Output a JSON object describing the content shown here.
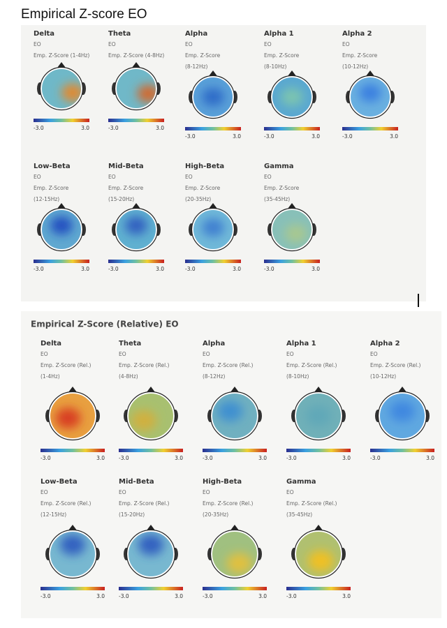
{
  "sections": [
    {
      "title": "Empirical Z-score EO",
      "maps": [
        {
          "name": "Delta",
          "condition": "EO",
          "metric": "Emp. Z-Score (1-4Hz)",
          "scale_min": "-3.0",
          "scale_max": "3.0"
        },
        {
          "name": "Theta",
          "condition": "EO",
          "metric": "Emp. Z-Score (4-8Hz)",
          "scale_min": "-3.0",
          "scale_max": "3.0"
        },
        {
          "name": "Alpha",
          "condition": "EO",
          "metric": "Emp. Z-Score",
          "band": "(8-12Hz)",
          "scale_min": "-3.0",
          "scale_max": "3.0"
        },
        {
          "name": "Alpha 1",
          "condition": "EO",
          "metric": "Emp. Z-Score",
          "band": "(8-10Hz)",
          "scale_min": "-3.0",
          "scale_max": "3.0"
        },
        {
          "name": "Alpha 2",
          "condition": "EO",
          "metric": "Emp. Z-Score",
          "band": "(10-12Hz)",
          "scale_min": "-3.0",
          "scale_max": "3.0"
        },
        {
          "name": "Low-Beta",
          "condition": "EO",
          "metric": "Emp. Z-Score",
          "band": "(12-15Hz)",
          "scale_min": "-3.0",
          "scale_max": "3.0"
        },
        {
          "name": "Mid-Beta",
          "condition": "EO",
          "metric": "Emp. Z-Score",
          "band": "(15-20Hz)",
          "scale_min": "-3.0",
          "scale_max": "3.0"
        },
        {
          "name": "High-Beta",
          "condition": "EO",
          "metric": "Emp. Z-Score",
          "band": "(20-35Hz)",
          "scale_min": "-3.0",
          "scale_max": "3.0"
        },
        {
          "name": "Gamma",
          "condition": "EO",
          "metric": "Emp. Z-Score",
          "band": "(35-45Hz)",
          "scale_min": "-3.0",
          "scale_max": "3.0"
        }
      ]
    },
    {
      "title": "Empirical Z-Score (Relative) EO",
      "maps": [
        {
          "name": "Delta",
          "condition": "EO",
          "metric": "Emp. Z-Score (Rel.)",
          "band": "(1-4Hz)",
          "scale_min": "-3.0",
          "scale_max": "3.0"
        },
        {
          "name": "Theta",
          "condition": "EO",
          "metric": "Emp. Z-Score (Rel.)",
          "band": "(4-8Hz)",
          "scale_min": "-3.0",
          "scale_max": "3.0"
        },
        {
          "name": "Alpha",
          "condition": "EO",
          "metric": "Emp. Z-Score (Rel.)",
          "band": "(8-12Hz)",
          "scale_min": "-3.0",
          "scale_max": "3.0"
        },
        {
          "name": "Alpha 1",
          "condition": "EO",
          "metric": "Emp. Z-Score (Rel.)",
          "band": "(8-10Hz)",
          "scale_min": "-3.0",
          "scale_max": "3.0"
        },
        {
          "name": "Alpha 2",
          "condition": "EO",
          "metric": "Emp. Z-Score (Rel.)",
          "band": "(10-12Hz)",
          "scale_min": "-3.0",
          "scale_max": "3.0"
        },
        {
          "name": "Low-Beta",
          "condition": "EO",
          "metric": "Emp. Z-Score (Rel.)",
          "band": "(12-15Hz)",
          "scale_min": "-3.0",
          "scale_max": "3.0"
        },
        {
          "name": "Mid-Beta",
          "condition": "EO",
          "metric": "Emp. Z-Score (Rel.)",
          "band": "(15-20Hz)",
          "scale_min": "-3.0",
          "scale_max": "3.0"
        },
        {
          "name": "High-Beta",
          "condition": "EO",
          "metric": "Emp. Z-Score (Rel.)",
          "band": "(20-35Hz)",
          "scale_min": "-3.0",
          "scale_max": "3.0"
        },
        {
          "name": "Gamma",
          "condition": "EO",
          "metric": "Emp. Z-Score (Rel.)",
          "band": "(35-45Hz)",
          "scale_min": "-3.0",
          "scale_max": "3.0"
        }
      ]
    }
  ]
}
